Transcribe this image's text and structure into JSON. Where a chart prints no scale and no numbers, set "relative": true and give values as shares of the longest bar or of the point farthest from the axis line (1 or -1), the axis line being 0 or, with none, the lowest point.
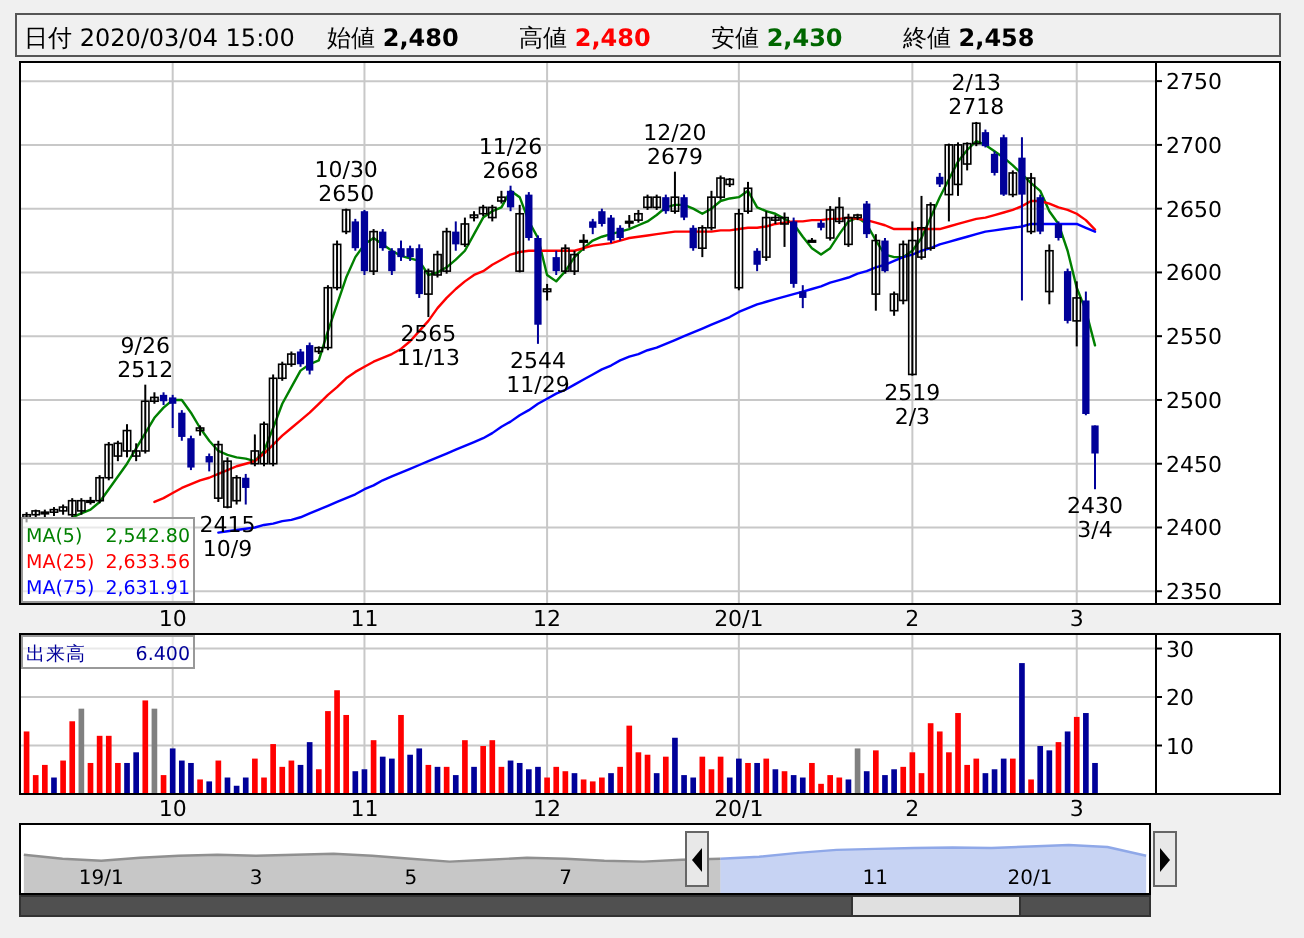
{
  "chart_data": [
    {
      "type": "candlestick",
      "title": "日付 2020/03/04 15:00",
      "annotations": [
        "始値",
        "2,480",
        "高値",
        "2,480",
        "安値",
        "2,430",
        "終値",
        "2,458",
        "2,542.80",
        "2,633.56",
        "2,631.91",
        {
          "text": "9/26\n2512",
          "y": 2512
        },
        {
          "text": "2415\n10/9",
          "y": 2415
        },
        {
          "text": "10/30\n2650",
          "y": 2650
        },
        {
          "text": "2565\n11/13",
          "y": 2565
        },
        {
          "text": "11/26\n2668",
          "y": 2668
        },
        {
          "text": "2544\n11/29",
          "y": 2544
        },
        {
          "text": "12/20\n2679",
          "y": 2679
        },
        {
          "text": "2519\n2/3",
          "y": 2519
        },
        {
          "text": "2/13\n2718",
          "y": 2718
        },
        {
          "text": "2430\n3/4",
          "y": 2430
        }
      ],
      "categories": [
        null,
        null,
        null,
        null,
        null,
        null,
        null,
        null,
        null,
        null,
        null,
        null,
        null,
        null,
        null,
        null,
        "10",
        null,
        null,
        null,
        null,
        null,
        null,
        null,
        null,
        null,
        null,
        null,
        null,
        null,
        null,
        null,
        null,
        null,
        null,
        null,
        null,
        "11",
        null,
        null,
        null,
        null,
        null,
        null,
        null,
        null,
        null,
        null,
        null,
        null,
        null,
        null,
        null,
        null,
        null,
        null,
        null,
        "12",
        null,
        null,
        null,
        null,
        null,
        null,
        null,
        null,
        null,
        null,
        null,
        null,
        null,
        null,
        null,
        null,
        null,
        null,
        null,
        null,
        "20/1",
        null,
        null,
        null,
        null,
        null,
        null,
        null,
        null,
        null,
        null,
        null,
        null,
        null,
        null,
        null,
        null,
        null,
        null,
        "2",
        null,
        null,
        null,
        null,
        null,
        null,
        null,
        null,
        null,
        null,
        null,
        null,
        null,
        null,
        null,
        null,
        null,
        "3",
        null,
        null
      ],
      "ylim": [
        2340,
        2765
      ],
      "yticks": [
        2350,
        2400,
        2450,
        2500,
        2550,
        2600,
        2650,
        2700,
        2750
      ],
      "grid": true,
      "legend": "bottom left",
      "ohlc": [
        [
          2408,
          2412,
          2404,
          2410
        ],
        [
          2410,
          2414,
          2407,
          2413
        ],
        [
          2411,
          2414,
          2408,
          2412
        ],
        [
          2412,
          2416,
          2409,
          2414
        ],
        [
          2413,
          2418,
          2410,
          2416
        ],
        [
          2410,
          2423,
          2408,
          2421
        ],
        [
          2413,
          2423,
          2410,
          2421
        ],
        [
          2421,
          2424,
          2418,
          2421
        ],
        [
          2421,
          2441,
          2419,
          2439
        ],
        [
          2439,
          2467,
          2437,
          2465
        ],
        [
          2456,
          2468,
          2452,
          2466
        ],
        [
          2460,
          2481,
          2455,
          2476
        ],
        [
          2456,
          2466,
          2452,
          2460
        ],
        [
          2460,
          2512,
          2458,
          2499
        ],
        [
          2499,
          2506,
          2497,
          2502
        ],
        [
          2504,
          2506,
          2496,
          2499
        ],
        [
          2502,
          2504,
          2478,
          2497
        ],
        [
          2490,
          2492,
          2468,
          2471
        ],
        [
          2470,
          2472,
          2445,
          2447
        ],
        [
          2476,
          2480,
          2472,
          2478
        ],
        [
          2456,
          2458,
          2444,
          2451
        ],
        [
          2423,
          2468,
          2420,
          2465
        ],
        [
          2416,
          2455,
          2415,
          2452
        ],
        [
          2421,
          2441,
          2418,
          2439
        ],
        [
          2439,
          2442,
          2418,
          2431
        ],
        [
          2450,
          2473,
          2448,
          2460
        ],
        [
          2450,
          2483,
          2448,
          2481
        ],
        [
          2450,
          2520,
          2448,
          2517
        ],
        [
          2517,
          2530,
          2515,
          2528
        ],
        [
          2528,
          2538,
          2526,
          2536
        ],
        [
          2538,
          2540,
          2526,
          2528
        ],
        [
          2543,
          2545,
          2520,
          2523
        ],
        [
          2538,
          2542,
          2536,
          2541
        ],
        [
          2541,
          2590,
          2539,
          2588
        ],
        [
          2588,
          2625,
          2586,
          2622
        ],
        [
          2632,
          2650,
          2630,
          2649
        ],
        [
          2640,
          2642,
          2617,
          2619
        ],
        [
          2648,
          2649,
          2598,
          2601
        ],
        [
          2601,
          2634,
          2598,
          2632
        ],
        [
          2632,
          2634,
          2617,
          2619
        ],
        [
          2617,
          2619,
          2598,
          2601
        ],
        [
          2619,
          2625,
          2609,
          2612
        ],
        [
          2619,
          2621,
          2609,
          2612
        ],
        [
          2619,
          2622,
          2580,
          2583
        ],
        [
          2583,
          2603,
          2565,
          2601
        ],
        [
          2598,
          2617,
          2596,
          2614
        ],
        [
          2601,
          2635,
          2599,
          2632
        ],
        [
          2632,
          2640,
          2617,
          2622
        ],
        [
          2622,
          2643,
          2620,
          2638
        ],
        [
          2643,
          2648,
          2640,
          2645
        ],
        [
          2646,
          2653,
          2644,
          2651
        ],
        [
          2643,
          2653,
          2640,
          2651
        ],
        [
          2656,
          2664,
          2654,
          2659
        ],
        [
          2664,
          2668,
          2648,
          2651
        ],
        [
          2601,
          2653,
          2600,
          2646
        ],
        [
          2661,
          2663,
          2625,
          2627
        ],
        [
          2627,
          2629,
          2544,
          2559
        ],
        [
          2585,
          2591,
          2578,
          2587
        ],
        [
          2612,
          2617,
          2598,
          2601
        ],
        [
          2601,
          2622,
          2599,
          2619
        ],
        [
          2601,
          2617,
          2598,
          2614
        ],
        [
          2624,
          2630,
          2617,
          2625
        ],
        [
          2640,
          2642,
          2630,
          2635
        ],
        [
          2648,
          2650,
          2636,
          2638
        ],
        [
          2643,
          2645,
          2623,
          2625
        ],
        [
          2635,
          2637,
          2625,
          2627
        ],
        [
          2639,
          2645,
          2635,
          2640
        ],
        [
          2641,
          2649,
          2639,
          2646
        ],
        [
          2651,
          2661,
          2649,
          2659
        ],
        [
          2651,
          2661,
          2649,
          2659
        ],
        [
          2659,
          2661,
          2646,
          2648
        ],
        [
          2648,
          2679,
          2646,
          2659
        ],
        [
          2659,
          2661,
          2641,
          2643
        ],
        [
          2635,
          2637,
          2617,
          2619
        ],
        [
          2619,
          2637,
          2612,
          2635
        ],
        [
          2635,
          2664,
          2633,
          2659
        ],
        [
          2659,
          2676,
          2657,
          2674
        ],
        [
          2669,
          2674,
          2667,
          2673
        ],
        [
          2588,
          2650,
          2586,
          2646
        ],
        [
          2648,
          2671,
          2646,
          2666
        ],
        [
          2617,
          2619,
          2601,
          2606
        ],
        [
          2612,
          2648,
          2609,
          2643
        ],
        [
          2641,
          2645,
          2638,
          2643
        ],
        [
          2638,
          2647,
          2620,
          2643
        ],
        [
          2640,
          2643,
          2588,
          2591
        ],
        [
          2585,
          2590,
          2572,
          2580
        ],
        [
          2625,
          2627,
          2624,
          2625
        ],
        [
          2639,
          2641,
          2633,
          2635
        ],
        [
          2627,
          2652,
          2625,
          2649
        ],
        [
          2640,
          2659,
          2638,
          2651
        ],
        [
          2622,
          2646,
          2620,
          2643
        ],
        [
          2643,
          2646,
          2641,
          2645
        ],
        [
          2654,
          2656,
          2627,
          2630
        ],
        [
          2583,
          2630,
          2570,
          2625
        ],
        [
          2625,
          2627,
          2600,
          2601
        ],
        [
          2570,
          2585,
          2566,
          2583
        ],
        [
          2578,
          2625,
          2575,
          2622
        ],
        [
          2520,
          2640,
          2519,
          2625
        ],
        [
          2612,
          2660,
          2610,
          2635
        ],
        [
          2619,
          2655,
          2617,
          2653
        ],
        [
          2675,
          2678,
          2667,
          2669
        ],
        [
          2661,
          2701,
          2640,
          2700
        ],
        [
          2669,
          2702,
          2660,
          2700
        ],
        [
          2685,
          2702,
          2680,
          2701
        ],
        [
          2701,
          2718,
          2699,
          2717
        ],
        [
          2710,
          2712,
          2698,
          2699
        ],
        [
          2693,
          2695,
          2676,
          2678
        ],
        [
          2706,
          2708,
          2660,
          2661
        ],
        [
          2661,
          2680,
          2659,
          2678
        ],
        [
          2690,
          2706,
          2578,
          2661
        ],
        [
          2632,
          2678,
          2630,
          2674
        ],
        [
          2659,
          2661,
          2630,
          2632
        ],
        [
          2585,
          2622,
          2575,
          2617
        ],
        [
          2638,
          2640,
          2625,
          2627
        ],
        [
          2601,
          2603,
          2560,
          2562
        ],
        [
          2562,
          2593,
          2542,
          2580
        ],
        [
          2578,
          2585,
          2488,
          2489
        ],
        [
          2480,
          2480,
          2430,
          2458
        ]
      ],
      "series": [
        {
          "type": "line",
          "name": "MA(5)",
          "color": "#008000",
          "values": [
            null,
            null,
            null,
            null,
            null,
            2408,
            2411,
            2414,
            2420,
            2430,
            2440,
            2450,
            2462,
            2474,
            2486,
            2494,
            2500,
            2500,
            2490,
            2478,
            2468,
            2460,
            2457,
            2455,
            2454,
            2452,
            2460,
            2478,
            2497,
            2510,
            2523,
            2528,
            2531,
            2554,
            2575,
            2596,
            2612,
            2622,
            2627,
            2622,
            2617,
            2613,
            2611,
            2609,
            2598,
            2600,
            2604,
            2610,
            2617,
            2630,
            2643,
            2648,
            2651,
            2664,
            2659,
            2640,
            2627,
            2598,
            2593,
            2601,
            2612,
            2619,
            2625,
            2628,
            2630,
            2632,
            2634,
            2637,
            2640,
            2645,
            2651,
            2653,
            2653,
            2650,
            2646,
            2650,
            2656,
            2658,
            2659,
            2664,
            2651,
            2648,
            2646,
            2642,
            2638,
            2628,
            2619,
            2614,
            2619,
            2630,
            2640,
            2643,
            2638,
            2625,
            2614,
            2612,
            2612,
            2617,
            2627,
            2643,
            2659,
            2673,
            2687,
            2696,
            2703,
            2700,
            2695,
            2690,
            2684,
            2677,
            2670,
            2664,
            2648,
            2638,
            2617,
            2588,
            2570,
            2542.8
          ]
        },
        {
          "type": "line",
          "name": "MA(25)",
          "color": "#ff0000",
          "values": [
            null,
            null,
            null,
            null,
            null,
            null,
            null,
            null,
            null,
            null,
            null,
            null,
            null,
            null,
            2420,
            2423,
            2427,
            2431,
            2434,
            2437,
            2439,
            2442,
            2445,
            2448,
            2450,
            2452,
            2458,
            2465,
            2472,
            2478,
            2484,
            2490,
            2497,
            2504,
            2510,
            2517,
            2522,
            2526,
            2530,
            2533,
            2536,
            2540,
            2546,
            2554,
            2562,
            2572,
            2580,
            2587,
            2593,
            2598,
            2601,
            2606,
            2610,
            2614,
            2616,
            2617,
            2617,
            2617,
            2617,
            2617,
            2617,
            2619,
            2621,
            2622,
            2623,
            2625,
            2627,
            2628,
            2629,
            2630,
            2631,
            2632,
            2632,
            2632,
            2632,
            2632,
            2633,
            2633,
            2634,
            2635,
            2635,
            2636,
            2638,
            2639,
            2640,
            2640,
            2641,
            2641,
            2642,
            2642,
            2643,
            2642,
            2641,
            2639,
            2637,
            2634,
            2634,
            2634,
            2634,
            2634,
            2634,
            2636,
            2638,
            2640,
            2642,
            2643,
            2645,
            2647,
            2649,
            2652,
            2656,
            2656,
            2654,
            2651,
            2649,
            2646,
            2641,
            2633.56
          ]
        },
        {
          "type": "line",
          "name": "MA(75)",
          "color": "#0000ff",
          "values": [
            null,
            null,
            null,
            null,
            null,
            null,
            null,
            null,
            null,
            null,
            null,
            null,
            null,
            null,
            null,
            null,
            null,
            null,
            null,
            null,
            null,
            2396,
            2397,
            2398,
            2399,
            2400,
            2402,
            2403,
            2405,
            2406,
            2408,
            2411,
            2414,
            2417,
            2420,
            2423,
            2426,
            2430,
            2433,
            2437,
            2440,
            2443,
            2446,
            2449,
            2452,
            2455,
            2458,
            2461,
            2464,
            2467,
            2470,
            2474,
            2479,
            2483,
            2488,
            2492,
            2497,
            2501,
            2505,
            2508,
            2512,
            2516,
            2520,
            2524,
            2527,
            2531,
            2534,
            2536,
            2539,
            2541,
            2544,
            2547,
            2550,
            2553,
            2556,
            2559,
            2562,
            2565,
            2569,
            2572,
            2575,
            2577,
            2579,
            2581,
            2583,
            2585,
            2587,
            2589,
            2592,
            2594,
            2596,
            2599,
            2601,
            2604,
            2606,
            2609,
            2612,
            2614,
            2617,
            2619,
            2622,
            2624,
            2626,
            2628,
            2630,
            2632,
            2633,
            2634,
            2635,
            2636,
            2638,
            2638,
            2638,
            2638,
            2638,
            2638,
            2635,
            2631.91
          ]
        }
      ]
    },
    {
      "type": "bar",
      "legend": "top left",
      "grid": true,
      "ylim": [
        0,
        33
      ],
      "yticks": [
        10,
        20,
        30
      ],
      "annotations": [
        "6.400"
      ],
      "categories": [
        null,
        null,
        null,
        null,
        null,
        null,
        null,
        null,
        null,
        null,
        null,
        null,
        null,
        null,
        null,
        null,
        "10",
        null,
        null,
        null,
        null,
        null,
        null,
        null,
        null,
        null,
        null,
        null,
        null,
        null,
        null,
        null,
        null,
        null,
        null,
        null,
        null,
        "11",
        null,
        null,
        null,
        null,
        null,
        null,
        null,
        null,
        null,
        null,
        null,
        null,
        null,
        null,
        null,
        null,
        null,
        null,
        null,
        "12",
        null,
        null,
        null,
        null,
        null,
        null,
        null,
        null,
        null,
        null,
        null,
        null,
        null,
        null,
        null,
        null,
        null,
        null,
        null,
        null,
        "20/1",
        null,
        null,
        null,
        null,
        null,
        null,
        null,
        null,
        null,
        null,
        null,
        null,
        null,
        null,
        null,
        null,
        null,
        null,
        "2",
        null,
        null,
        null,
        null,
        null,
        null,
        null,
        null,
        null,
        null,
        null,
        null,
        null,
        null,
        null,
        null,
        null,
        "3",
        null,
        null
      ],
      "series": [
        {
          "name": "出来高",
          "color": "#000099",
          "colors": [
            "#ff0000",
            "#ff0000",
            "#ff0000",
            "#000099",
            "#ff0000",
            "#ff0000",
            "#808080",
            "#ff0000",
            "#ff0000",
            "#ff0000",
            "#ff0000",
            "#000099",
            "#000099",
            "#ff0000",
            "#808080",
            "#ff0000",
            "#000099",
            "#000099",
            "#000099",
            "#ff0000",
            "#000099",
            "#ff0000",
            "#000099",
            "#000099",
            "#000099",
            "#ff0000",
            "#ff0000",
            "#ff0000",
            "#ff0000",
            "#ff0000",
            "#000099",
            "#000099",
            "#ff0000",
            "#ff0000",
            "#ff0000",
            "#ff0000",
            "#000099",
            "#000099",
            "#ff0000",
            "#000099",
            "#000099",
            "#ff0000",
            "#000099",
            "#000099",
            "#ff0000",
            "#000099",
            "#ff0000",
            "#000099",
            "#ff0000",
            "#000099",
            "#ff0000",
            "#ff0000",
            "#ff0000",
            "#000099",
            "#000099",
            "#000099",
            "#000099",
            "#ff0000",
            "#ff0000",
            "#ff0000",
            "#000099",
            "#ff0000",
            "#ff0000",
            "#ff0000",
            "#000099",
            "#ff0000",
            "#ff0000",
            "#ff0000",
            "#ff0000",
            "#000099",
            "#ff0000",
            "#000099",
            "#000099",
            "#000099",
            "#ff0000",
            "#ff0000",
            "#ff0000",
            "#000099",
            "#000099",
            "#ff0000",
            "#000099",
            "#ff0000",
            "#000099",
            "#ff0000",
            "#000099",
            "#000099",
            "#ff0000",
            "#ff0000",
            "#ff0000",
            "#ff0000",
            "#000099",
            "#808080",
            "#000099",
            "#ff0000",
            "#000099",
            "#000099",
            "#ff0000",
            "#ff0000",
            "#ff0000",
            "#ff0000",
            "#ff0000",
            "#ff0000",
            "#ff0000",
            "#ff0000",
            "#ff0000",
            "#000099",
            "#000099",
            "#000099",
            "#ff0000",
            "#000099",
            "#ff0000",
            "#000099",
            "#000099",
            "#ff0000",
            "#000099",
            "#ff0000",
            "#000099",
            "#000099"
          ],
          "values": [
            12.9,
            3.9,
            6,
            3.4,
            6.9,
            15,
            17.6,
            6.4,
            12,
            12,
            6.4,
            6.4,
            8.6,
            19.3,
            17.6,
            3.9,
            9.4,
            6.9,
            6.4,
            3,
            2.6,
            6.9,
            3.4,
            1.7,
            3.4,
            7.3,
            3.4,
            10.3,
            5.6,
            6.9,
            6,
            10.7,
            5.1,
            17.1,
            21.4,
            16.3,
            4.7,
            5.1,
            11.1,
            7.7,
            7.3,
            16.3,
            8.1,
            9.4,
            6,
            5.6,
            5.6,
            3.9,
            11.1,
            5.6,
            9.9,
            11.1,
            5.6,
            6.9,
            6.4,
            5.1,
            5.6,
            3.4,
            5.6,
            4.7,
            4.3,
            3,
            2.6,
            3.4,
            4.3,
            5.6,
            14.1,
            8.6,
            8.1,
            4.3,
            7.7,
            11.6,
            3.9,
            3.4,
            7.7,
            5.1,
            7.7,
            3.4,
            7.3,
            6.4,
            6.4,
            7.3,
            5.1,
            4.7,
            3.9,
            3.4,
            6.4,
            2.1,
            3.9,
            3.4,
            3,
            9.4,
            4.7,
            9,
            3.9,
            5.1,
            5.6,
            8.6,
            4.3,
            14.6,
            12.9,
            8.6,
            16.7,
            6,
            7.3,
            4.3,
            5.1,
            7.3,
            7.3,
            27,
            3,
            9.9,
            9,
            10.7,
            12.9,
            15.9,
            16.7,
            6.4
          ]
        }
      ]
    },
    {
      "type": "area",
      "relative": true,
      "tick_labels": "x",
      "categories": [
        null,
        null,
        "19/1",
        null,
        null,
        null,
        "3",
        null,
        null,
        null,
        "5",
        null,
        null,
        null,
        "7",
        null,
        null,
        null,
        null,
        null,
        null,
        null,
        "11",
        null,
        null,
        null,
        "20/1",
        null,
        null,
        null
      ],
      "series": [
        {
          "color": "#909090",
          "values": [
            0.8,
            0.72,
            0.68,
            0.74,
            0.78,
            0.8,
            0.78,
            0.8,
            0.82,
            0.78,
            0.72,
            0.66,
            0.7,
            0.74,
            0.72,
            0.68,
            0.66,
            0.7,
            0.72,
            null,
            null,
            null,
            null,
            null,
            null,
            null,
            null,
            null,
            null,
            null
          ]
        },
        {
          "color": "#8fa8e8",
          "values": [
            null,
            null,
            null,
            null,
            null,
            null,
            null,
            null,
            null,
            null,
            null,
            null,
            null,
            null,
            null,
            null,
            null,
            null,
            0.72,
            0.76,
            0.84,
            0.9,
            0.92,
            0.94,
            0.95,
            0.94,
            0.97,
            1,
            0.96,
            0.78
          ]
        }
      ]
    }
  ]
}
